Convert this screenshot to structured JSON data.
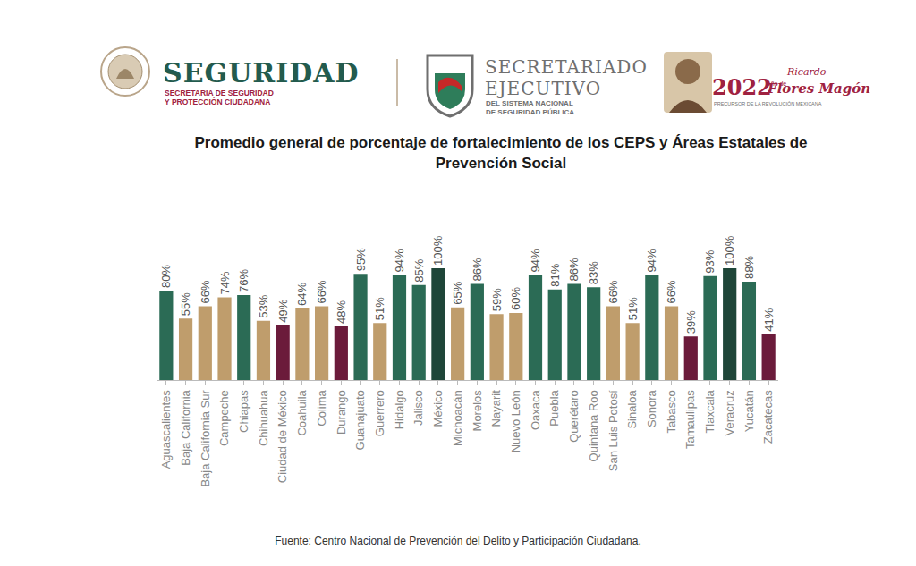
{
  "header": {
    "seguridad": {
      "name": "SEGURIDAD",
      "subtitle": [
        "SECRETARÍA DE SEGURIDAD",
        "Y PROTECCIÓN CIUDADANA"
      ]
    },
    "secretariado": {
      "name": [
        "SECRETARIADO",
        "EJECUTIVO"
      ],
      "subtitle": [
        "DEL SISTEMA NACIONAL",
        "DE SEGURIDAD PÚBLICA"
      ]
    },
    "year": {
      "year": "2022",
      "prefix": "Año de",
      "name": [
        "Ricardo",
        "Flores Magón"
      ],
      "tagline": "PRECURSOR DE LA REVOLUCIÓN MEXICANA"
    }
  },
  "source": "Fuente: Centro Nacional de Prevención del Delito y Participación Ciudadana.",
  "chart_data": {
    "type": "bar",
    "title": "Promedio general de porcentaje de fortalecimiento de los CEPS y Áreas Estatales de Prevención Social",
    "categories": [
      "Aguascalientes",
      "Baja California",
      "Baja California Sur",
      "Campeche",
      "Chiapas",
      "Chihuahua",
      "Ciudad de México",
      "Coahuila",
      "Colima",
      "Durango",
      "Guanajuato",
      "Guerrero",
      "Hidalgo",
      "Jalisco",
      "México",
      "Michoacán",
      "Morelos",
      "Nayarit",
      "Nuevo León",
      "Oaxaca",
      "Puebla",
      "Querétaro",
      "Quintana Roo",
      "San Luis Potosí",
      "Sinaloa",
      "Sonora",
      "Tabasco",
      "Tamaulipas",
      "Tlaxcala",
      "Veracruz",
      "Yucatán",
      "Zacatecas"
    ],
    "values": [
      80,
      55,
      66,
      74,
      76,
      53,
      49,
      64,
      66,
      48,
      95,
      51,
      94,
      85,
      100,
      65,
      86,
      59,
      60,
      94,
      81,
      86,
      83,
      66,
      51,
      94,
      66,
      39,
      93,
      100,
      88,
      41
    ],
    "value_labels": [
      "80%",
      "55%",
      "66%",
      "74%",
      "76%",
      "53%",
      "49%",
      "64%",
      "66%",
      "48%",
      "95%",
      "51%",
      "94%",
      "85%",
      "100%",
      "65%",
      "86%",
      "59%",
      "60%",
      "94%",
      "81%",
      "86%",
      "83%",
      "66%",
      "51%",
      "94%",
      "66%",
      "39%",
      "93%",
      "100%",
      "88%",
      "41%"
    ],
    "colors": [
      "#2b6b55",
      "#bf9d6c",
      "#bf9d6c",
      "#bf9d6c",
      "#2b6b55",
      "#bf9d6c",
      "#6b1b3b",
      "#bf9d6c",
      "#bf9d6c",
      "#6b1b3b",
      "#2b6b55",
      "#bf9d6c",
      "#2b6b55",
      "#2b6b55",
      "#1f4639",
      "#bf9d6c",
      "#2b6b55",
      "#bf9d6c",
      "#bf9d6c",
      "#2b6b55",
      "#2b6b55",
      "#2b6b55",
      "#2b6b55",
      "#bf9d6c",
      "#bf9d6c",
      "#2b6b55",
      "#bf9d6c",
      "#6b1b3b",
      "#2b6b55",
      "#1f4639",
      "#2b6b55",
      "#6b1b3b"
    ],
    "ylim": [
      0,
      100
    ],
    "data_labels": true,
    "tick_labels": "x",
    "grid": false
  }
}
